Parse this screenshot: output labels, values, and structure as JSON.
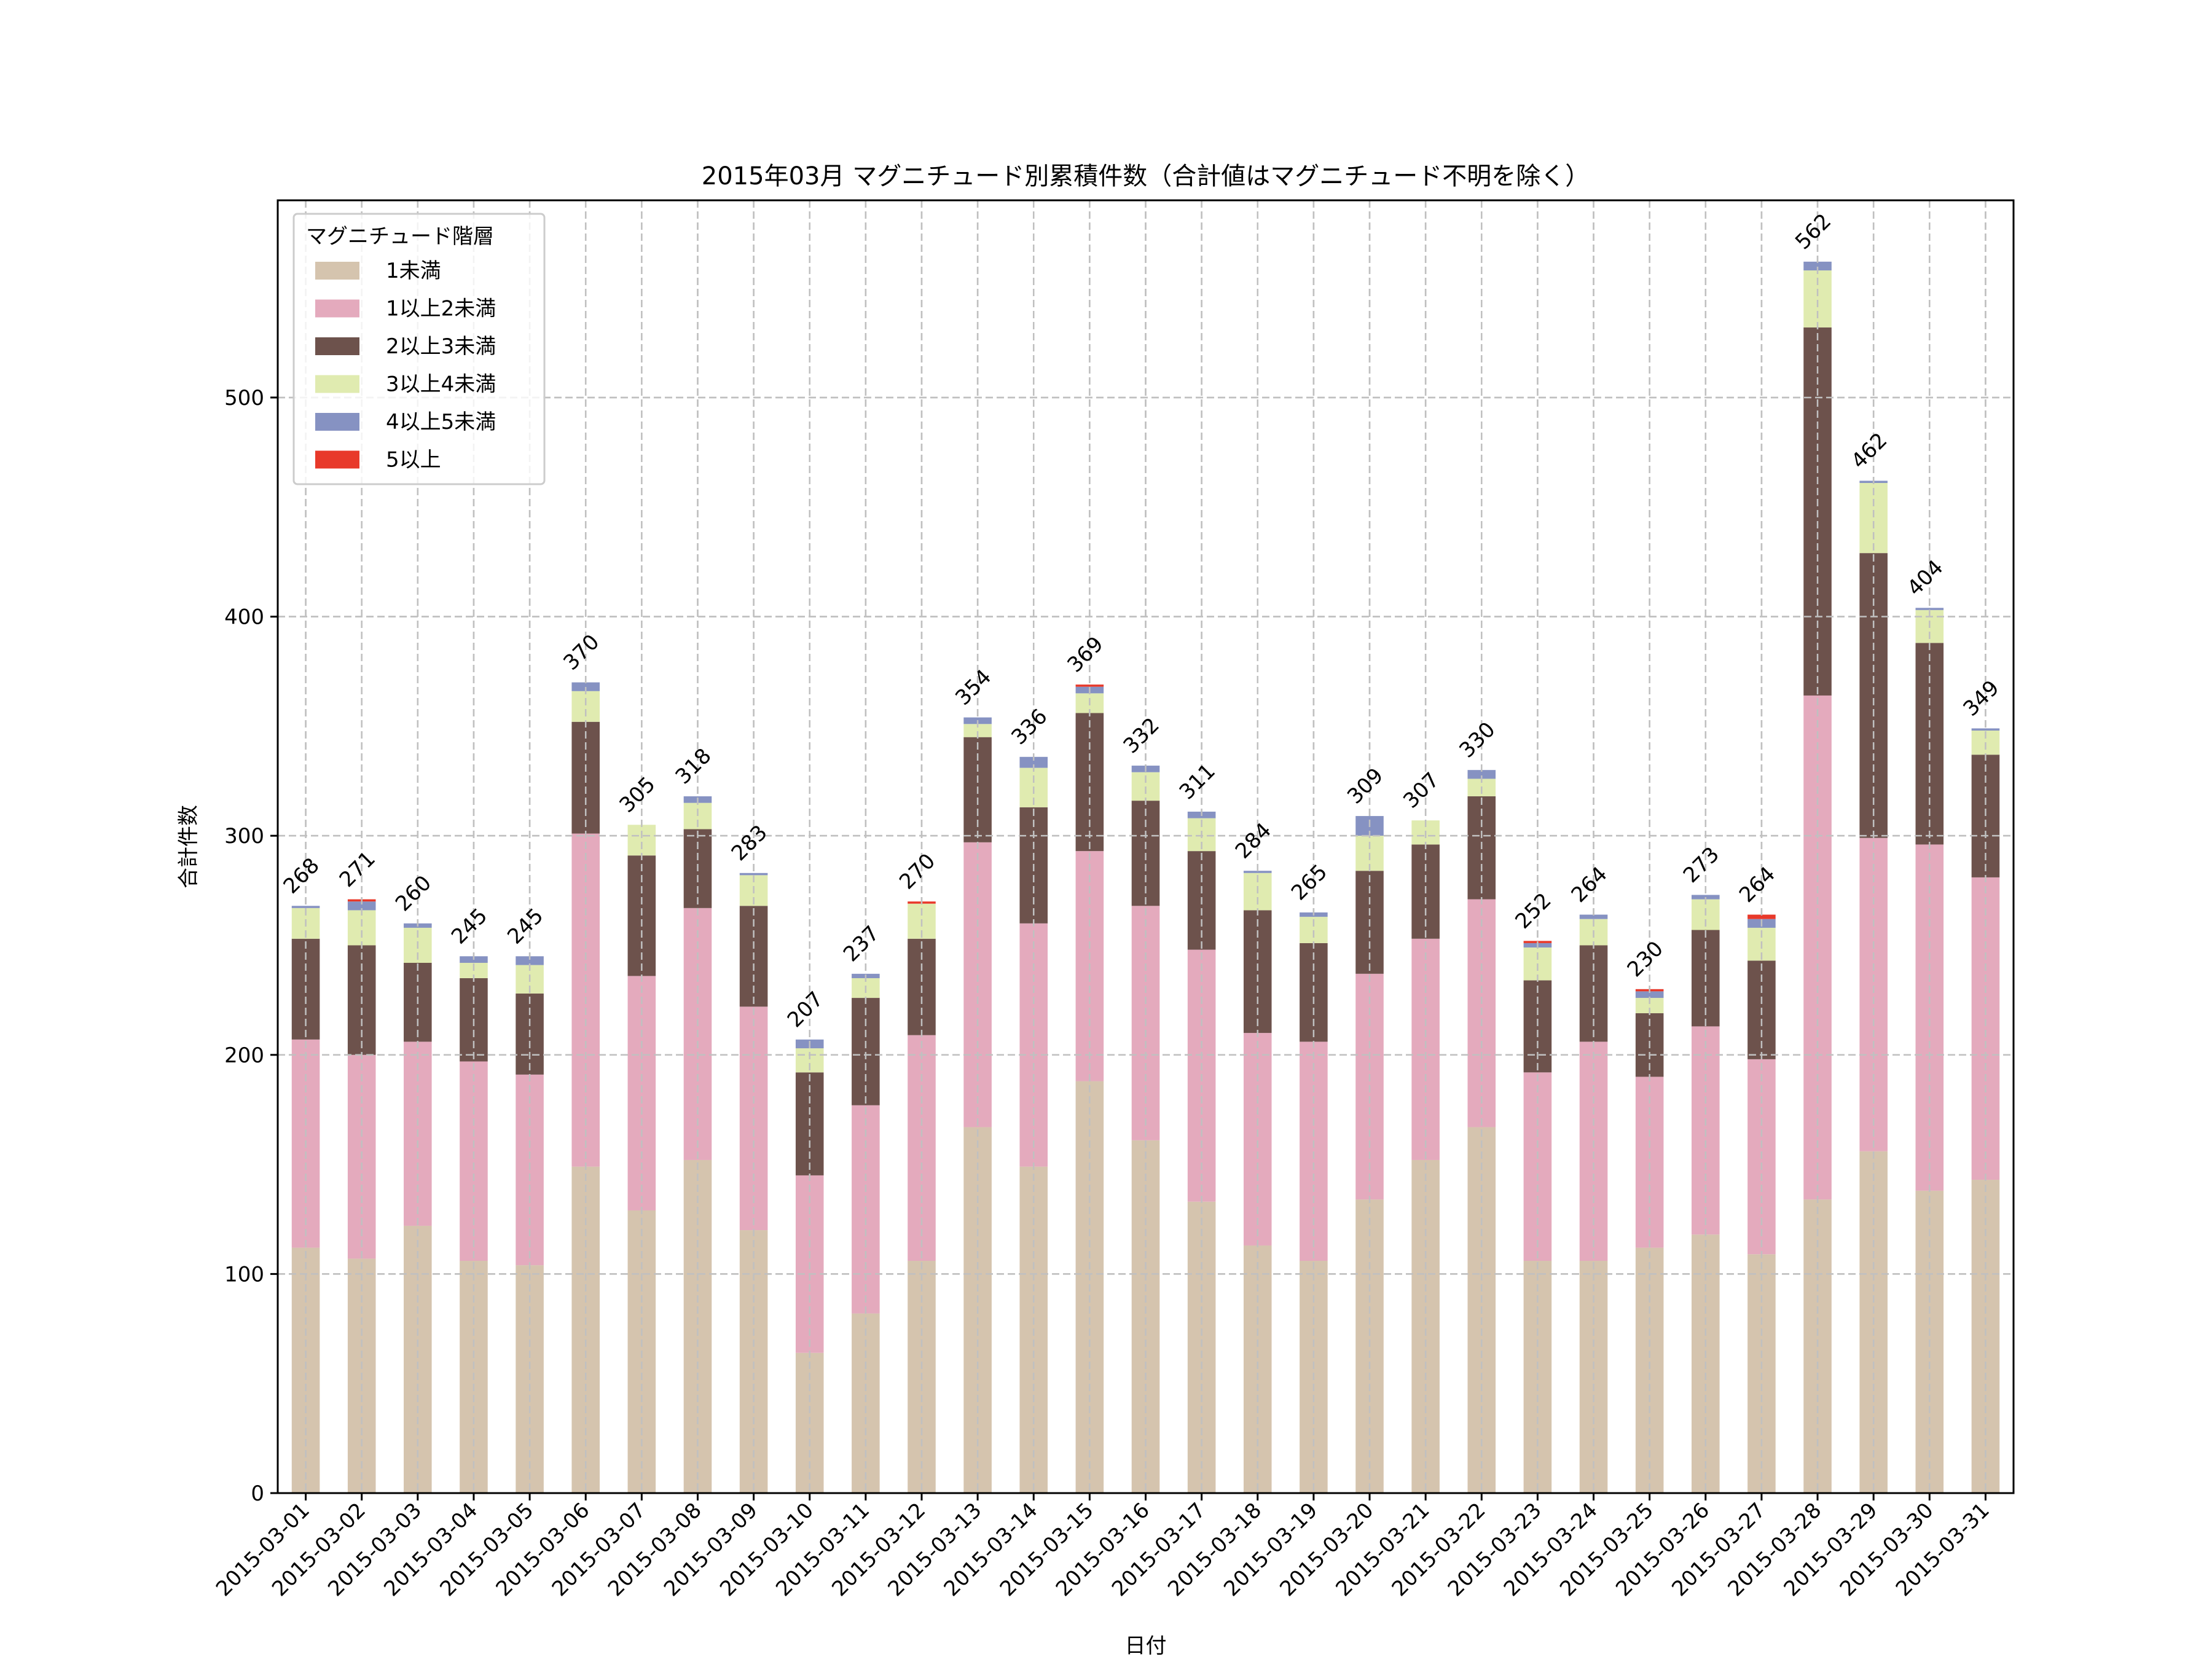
{
  "chart_data": {
    "type": "bar",
    "stacked": true,
    "title": "2015年03月 マグニチュード別累積件数（合計値はマグニチュード不明を除く）",
    "xlabel": "日付",
    "ylabel": "合計件数",
    "ylim": [
      0,
      590
    ],
    "yticks": [
      0,
      100,
      200,
      300,
      400,
      500
    ],
    "grid": true,
    "legend": {
      "title": "マグニチュード階層",
      "placement": "top-left"
    },
    "categories": [
      "2015-03-01",
      "2015-03-02",
      "2015-03-03",
      "2015-03-04",
      "2015-03-05",
      "2015-03-06",
      "2015-03-07",
      "2015-03-08",
      "2015-03-09",
      "2015-03-10",
      "2015-03-11",
      "2015-03-12",
      "2015-03-13",
      "2015-03-14",
      "2015-03-15",
      "2015-03-16",
      "2015-03-17",
      "2015-03-18",
      "2015-03-19",
      "2015-03-20",
      "2015-03-21",
      "2015-03-22",
      "2015-03-23",
      "2015-03-24",
      "2015-03-25",
      "2015-03-26",
      "2015-03-27",
      "2015-03-28",
      "2015-03-29",
      "2015-03-30",
      "2015-03-31"
    ],
    "series": [
      {
        "name": "1未満",
        "color": "#d5c4ae",
        "values": [
          112,
          107,
          122,
          106,
          104,
          149,
          129,
          152,
          120,
          64,
          82,
          106,
          167,
          149,
          188,
          161,
          133,
          113,
          106,
          134,
          152,
          167,
          106,
          106,
          112,
          118,
          109,
          134,
          156,
          138,
          143
        ]
      },
      {
        "name": "1以上2未満",
        "color": "#e4aabd",
        "values": [
          95,
          93,
          84,
          91,
          87,
          152,
          107,
          115,
          102,
          81,
          95,
          103,
          130,
          111,
          105,
          107,
          115,
          97,
          100,
          103,
          101,
          104,
          86,
          100,
          78,
          95,
          89,
          230,
          143,
          158,
          138
        ]
      },
      {
        "name": "2以上3未満",
        "color": "#6d524c",
        "values": [
          46,
          50,
          36,
          38,
          37,
          51,
          55,
          36,
          46,
          47,
          49,
          44,
          48,
          53,
          63,
          48,
          45,
          56,
          45,
          47,
          43,
          47,
          42,
          44,
          29,
          44,
          45,
          168,
          130,
          92,
          56
        ]
      },
      {
        "name": "3以上4未満",
        "color": "#e0ebb0",
        "values": [
          14,
          16,
          16,
          7,
          13,
          14,
          14,
          12,
          14,
          11,
          9,
          16,
          6,
          18,
          9,
          13,
          15,
          17,
          12,
          16,
          11,
          8,
          15,
          12,
          7,
          14,
          15,
          26,
          32,
          15,
          11
        ]
      },
      {
        "name": "4以上5未満",
        "color": "#8692c2",
        "values": [
          1,
          4,
          2,
          3,
          4,
          4,
          0,
          3,
          1,
          4,
          2,
          0,
          3,
          5,
          3,
          3,
          3,
          1,
          2,
          9,
          0,
          4,
          2,
          2,
          3,
          2,
          4,
          4,
          1,
          1,
          1
        ]
      },
      {
        "name": "5以上",
        "color": "#e8392a",
        "values": [
          0,
          1,
          0,
          0,
          0,
          0,
          0,
          0,
          0,
          0,
          0,
          1,
          0,
          0,
          1,
          0,
          0,
          0,
          0,
          0,
          0,
          0,
          1,
          0,
          1,
          0,
          2,
          0,
          0,
          0,
          0
        ]
      }
    ],
    "totals": [
      268,
      271,
      260,
      245,
      245,
      370,
      305,
      318,
      283,
      207,
      237,
      270,
      354,
      336,
      369,
      332,
      311,
      284,
      265,
      309,
      307,
      330,
      252,
      264,
      230,
      273,
      264,
      562,
      462,
      404,
      349
    ]
  }
}
